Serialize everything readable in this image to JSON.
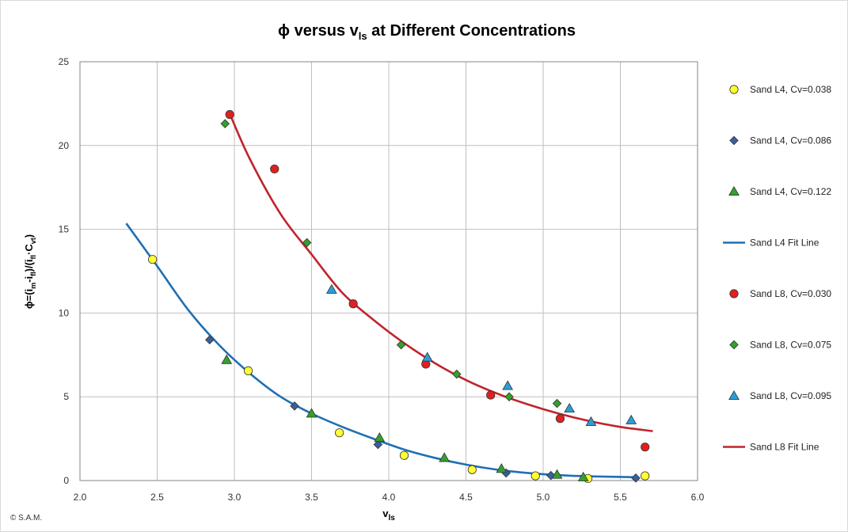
{
  "chart_data": {
    "type": "scatter",
    "title": "ϕ versus v",
    "title_sub": "ls",
    "title_rest": " at Different Concentrations",
    "xlabel": "v",
    "xlabel_sub": "ls",
    "ylabel": "ϕ=(i",
    "ylabel_parts": [
      {
        "t": "ϕ=(i",
        "sub": false
      },
      {
        "t": "m",
        "sub": true
      },
      {
        "t": "-i",
        "sub": false
      },
      {
        "t": "fl",
        "sub": true
      },
      {
        "t": ")/(i",
        "sub": false
      },
      {
        "t": "fl",
        "sub": true
      },
      {
        "t": "·C",
        "sub": false
      },
      {
        "t": "vt",
        "sub": true
      },
      {
        "t": ")",
        "sub": false
      }
    ],
    "xlim": [
      2.0,
      6.0
    ],
    "ylim": [
      0,
      25
    ],
    "x_ticks": [
      "2.0",
      "2.5",
      "3.0",
      "3.5",
      "4.0",
      "4.5",
      "5.0",
      "5.5",
      "6.0"
    ],
    "y_ticks": [
      "0",
      "5",
      "10",
      "15",
      "20",
      "25"
    ],
    "grid": true,
    "legend_position": "right",
    "credit": "© S.A.M.",
    "series": [
      {
        "name": "Sand L4, Cv=0.038",
        "kind": "points",
        "marker": "circle",
        "color": "#ffff33",
        "points": [
          [
            2.47,
            13.2
          ],
          [
            3.09,
            6.55
          ],
          [
            3.68,
            2.85
          ],
          [
            4.1,
            1.5
          ],
          [
            4.54,
            0.65
          ],
          [
            4.95,
            0.28
          ],
          [
            5.29,
            0.12
          ],
          [
            5.66,
            0.28
          ]
        ]
      },
      {
        "name": "Sand L4, Cv=0.086",
        "kind": "points",
        "marker": "diamond",
        "color": "#3a5f9e",
        "points": [
          [
            2.84,
            8.4
          ],
          [
            3.39,
            4.45
          ],
          [
            3.93,
            2.15
          ],
          [
            4.76,
            0.45
          ],
          [
            5.05,
            0.3
          ],
          [
            5.6,
            0.15
          ]
        ]
      },
      {
        "name": "Sand L4, Cv=0.122",
        "kind": "points",
        "marker": "triangle",
        "color": "#33a02c",
        "points": [
          [
            2.95,
            7.2
          ],
          [
            3.5,
            4.0
          ],
          [
            3.94,
            2.55
          ],
          [
            4.36,
            1.35
          ],
          [
            4.73,
            0.7
          ],
          [
            5.09,
            0.35
          ],
          [
            5.26,
            0.2
          ]
        ]
      },
      {
        "name": "Sand L4 Fit Line",
        "kind": "line",
        "color": "#1f6fb4",
        "points": [
          [
            2.3,
            15.35
          ],
          [
            2.5,
            12.8
          ],
          [
            2.7,
            10.2
          ],
          [
            2.9,
            8.1
          ],
          [
            3.1,
            6.4
          ],
          [
            3.3,
            5.0
          ],
          [
            3.5,
            4.0
          ],
          [
            3.7,
            3.2
          ],
          [
            3.9,
            2.5
          ],
          [
            4.1,
            1.85
          ],
          [
            4.3,
            1.35
          ],
          [
            4.5,
            0.95
          ],
          [
            4.7,
            0.65
          ],
          [
            4.9,
            0.45
          ],
          [
            5.1,
            0.32
          ],
          [
            5.3,
            0.25
          ],
          [
            5.6,
            0.2
          ]
        ]
      },
      {
        "name": "Sand L8, Cv=0.030",
        "kind": "points",
        "marker": "circle",
        "color": "#e02020",
        "points": [
          [
            2.97,
            21.85
          ],
          [
            3.26,
            18.6
          ],
          [
            3.77,
            10.55
          ],
          [
            4.24,
            6.95
          ],
          [
            4.66,
            5.1
          ],
          [
            5.11,
            3.7
          ],
          [
            5.66,
            2.0
          ]
        ]
      },
      {
        "name": "Sand L8, Cv=0.075",
        "kind": "points",
        "marker": "diamond",
        "color": "#33a02c",
        "points": [
          [
            2.94,
            21.3
          ],
          [
            3.47,
            14.2
          ],
          [
            4.08,
            8.1
          ],
          [
            4.44,
            6.35
          ],
          [
            4.78,
            5.0
          ],
          [
            5.09,
            4.6
          ]
        ]
      },
      {
        "name": "Sand L8, Cv=0.095",
        "kind": "points",
        "marker": "triangle",
        "color": "#2a9fd6",
        "points": [
          [
            3.63,
            11.4
          ],
          [
            4.25,
            7.35
          ],
          [
            4.77,
            5.65
          ],
          [
            5.17,
            4.3
          ],
          [
            5.31,
            3.5
          ],
          [
            5.57,
            3.6
          ]
        ]
      },
      {
        "name": "Sand L8 Fit Line",
        "kind": "line",
        "color": "#c0242b",
        "points": [
          [
            2.97,
            21.9
          ],
          [
            3.1,
            19.2
          ],
          [
            3.3,
            15.9
          ],
          [
            3.5,
            13.5
          ],
          [
            3.7,
            11.2
          ],
          [
            3.9,
            9.6
          ],
          [
            4.1,
            8.2
          ],
          [
            4.3,
            7.0
          ],
          [
            4.5,
            6.0
          ],
          [
            4.7,
            5.2
          ],
          [
            4.9,
            4.55
          ],
          [
            5.1,
            4.0
          ],
          [
            5.3,
            3.55
          ],
          [
            5.5,
            3.2
          ],
          [
            5.71,
            2.95
          ]
        ]
      }
    ]
  }
}
